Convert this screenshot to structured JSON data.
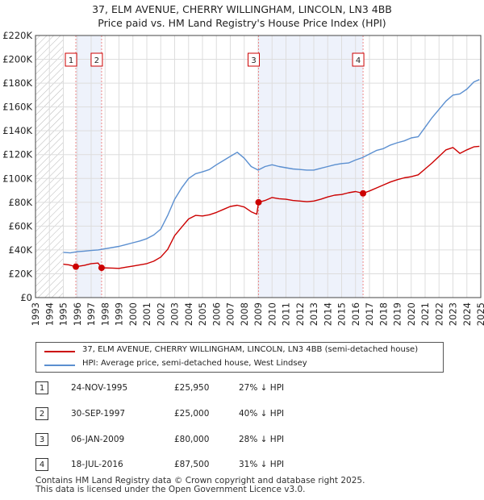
{
  "header": {
    "title_line1": "37, ELM AVENUE, CHERRY WILLINGHAM, LINCOLN, LN3 4BB",
    "title_line2": "Price paid vs. HM Land Registry's House Price Index (HPI)"
  },
  "chart_data": {
    "type": "line",
    "title": "37, ELM AVENUE, CHERRY WILLINGHAM, LINCOLN, LN3 4BB — Price paid vs. HM Land Registry's House Price Index (HPI)",
    "xlabel": "",
    "ylabel": "",
    "xlim": [
      1993,
      2025
    ],
    "ylim": [
      0,
      220000
    ],
    "x_ticks": [
      "1993",
      "1994",
      "1995",
      "1996",
      "1997",
      "1998",
      "1999",
      "2000",
      "2001",
      "2002",
      "2003",
      "2004",
      "2005",
      "2006",
      "2007",
      "2008",
      "2009",
      "2010",
      "2011",
      "2012",
      "2013",
      "2014",
      "2015",
      "2016",
      "2017",
      "2018",
      "2019",
      "2020",
      "2021",
      "2022",
      "2023",
      "2024",
      "2025"
    ],
    "y_ticks": [
      {
        "value": 0,
        "label": "£0"
      },
      {
        "value": 20000,
        "label": "£20K"
      },
      {
        "value": 40000,
        "label": "£40K"
      },
      {
        "value": 60000,
        "label": "£60K"
      },
      {
        "value": 80000,
        "label": "£80K"
      },
      {
        "value": 100000,
        "label": "£100K"
      },
      {
        "value": 120000,
        "label": "£120K"
      },
      {
        "value": 140000,
        "label": "£140K"
      },
      {
        "value": 160000,
        "label": "£160K"
      },
      {
        "value": 180000,
        "label": "£180K"
      },
      {
        "value": 200000,
        "label": "£200K"
      },
      {
        "value": 220000,
        "label": "£220K"
      }
    ],
    "grid": true,
    "hatched_before_year": 1995.0,
    "series": [
      {
        "name": "37, ELM AVENUE, CHERRY WILLINGHAM, LINCOLN, LN3 4BB (semi-detached house)",
        "color": "#cc0000",
        "x": [
          1995.0,
          1995.4,
          1995.9,
          1996.5,
          1997.0,
          1997.5,
          1997.75,
          1998.5,
          1999.0,
          1999.5,
          2000.0,
          2000.5,
          2001.0,
          2001.5,
          2002.0,
          2002.5,
          2003.0,
          2003.5,
          2004.0,
          2004.5,
          2005.0,
          2005.5,
          2006.0,
          2006.5,
          2007.0,
          2007.5,
          2008.0,
          2008.5,
          2008.9,
          2009.03,
          2009.5,
          2010.0,
          2010.5,
          2011.0,
          2011.5,
          2012.0,
          2012.5,
          2013.0,
          2013.5,
          2014.0,
          2014.5,
          2015.0,
          2015.5,
          2016.0,
          2016.54,
          2017.0,
          2017.5,
          2018.0,
          2018.5,
          2019.0,
          2019.5,
          2020.0,
          2020.5,
          2021.0,
          2021.5,
          2022.0,
          2022.5,
          2023.0,
          2023.5,
          2024.0,
          2024.5,
          2024.9
        ],
        "values": [
          28000,
          27500,
          25950,
          27000,
          28500,
          29000,
          25000,
          24800,
          24500,
          25500,
          26500,
          27500,
          28500,
          30500,
          34000,
          40500,
          52000,
          59000,
          66000,
          69000,
          68500,
          69500,
          71500,
          74000,
          76500,
          77500,
          76000,
          72000,
          70000,
          80000,
          81500,
          84000,
          83000,
          82500,
          81500,
          81000,
          80500,
          81000,
          82500,
          84500,
          86000,
          86500,
          88000,
          89000,
          87500,
          89500,
          92000,
          94500,
          97000,
          99000,
          100500,
          101500,
          103000,
          108000,
          113000,
          118500,
          124000,
          126000,
          121000,
          124000,
          126500,
          127000
        ]
      },
      {
        "name": "HPI: Average price, semi-detached house, West Lindsey",
        "color": "#5b8fd0",
        "x": [
          1995.0,
          1995.5,
          1996.0,
          1996.5,
          1997.0,
          1997.5,
          1998.0,
          1998.5,
          1999.0,
          1999.5,
          2000.0,
          2000.5,
          2001.0,
          2001.5,
          2002.0,
          2002.5,
          2003.0,
          2003.5,
          2004.0,
          2004.5,
          2005.0,
          2005.5,
          2006.0,
          2006.5,
          2007.0,
          2007.5,
          2008.0,
          2008.5,
          2009.0,
          2009.5,
          2010.0,
          2010.5,
          2011.0,
          2011.5,
          2012.0,
          2012.5,
          2013.0,
          2013.5,
          2014.0,
          2014.5,
          2015.0,
          2015.5,
          2016.0,
          2016.5,
          2017.0,
          2017.5,
          2018.0,
          2018.5,
          2019.0,
          2019.5,
          2020.0,
          2020.5,
          2021.0,
          2021.5,
          2022.0,
          2022.5,
          2023.0,
          2023.5,
          2024.0,
          2024.5,
          2024.9
        ],
        "values": [
          38000,
          37500,
          38500,
          39000,
          39500,
          40000,
          41000,
          42000,
          43000,
          44500,
          46000,
          47500,
          49500,
          52500,
          57500,
          69000,
          82500,
          92000,
          100000,
          104000,
          105500,
          107500,
          111500,
          115000,
          118500,
          122000,
          117000,
          110000,
          107000,
          110000,
          111500,
          110000,
          109000,
          108000,
          107500,
          107000,
          107000,
          108500,
          110000,
          111500,
          112500,
          113000,
          115500,
          117500,
          120500,
          123500,
          125000,
          128000,
          130000,
          131500,
          134000,
          135000,
          143000,
          151000,
          158000,
          165000,
          170000,
          171000,
          175000,
          181000,
          183000
        ]
      }
    ],
    "sales": [
      {
        "id": "1",
        "x": 1995.9,
        "value": 25950
      },
      {
        "id": "2",
        "x": 1997.75,
        "value": 25000
      },
      {
        "id": "3",
        "x": 2009.03,
        "value": 80000
      },
      {
        "id": "4",
        "x": 2016.54,
        "value": 87500
      }
    ],
    "colors": {
      "price": "#cc0000",
      "hpi": "#5b8fd0",
      "band": "#eef2fb",
      "grid": "#dddddd"
    }
  },
  "legend": {
    "price_label": "37, ELM AVENUE, CHERRY WILLINGHAM, LINCOLN, LN3 4BB (semi-detached house)",
    "hpi_label": "HPI: Average price, semi-detached house, West Lindsey"
  },
  "transactions": [
    {
      "id": "1",
      "date": "24-NOV-1995",
      "price": "£25,950",
      "hpi": "27% ↓ HPI"
    },
    {
      "id": "2",
      "date": "30-SEP-1997",
      "price": "£25,000",
      "hpi": "40% ↓ HPI"
    },
    {
      "id": "3",
      "date": "06-JAN-2009",
      "price": "£80,000",
      "hpi": "28% ↓ HPI"
    },
    {
      "id": "4",
      "date": "18-JUL-2016",
      "price": "£87,500",
      "hpi": "31% ↓ HPI"
    }
  ],
  "footer": {
    "line1": "Contains HM Land Registry data © Crown copyright and database right 2025.",
    "line2": "This data is licensed under the Open Government Licence v3.0."
  }
}
